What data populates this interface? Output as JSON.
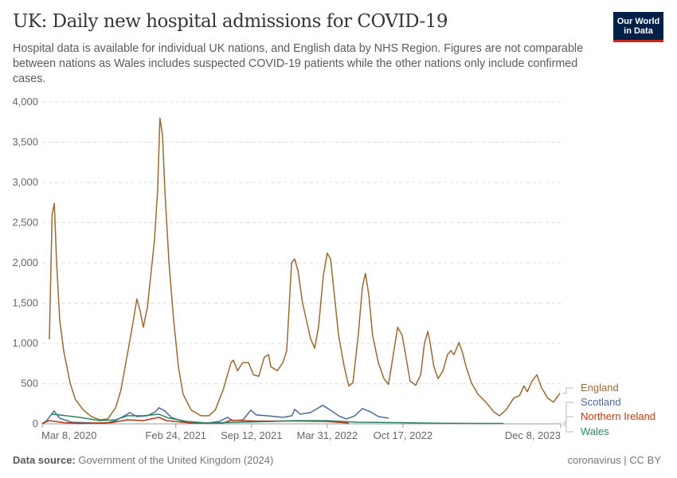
{
  "header": {
    "title": "UK: Daily new hospital admissions for COVID-19",
    "subtitle": "Hospital data is available for individual UK nations, and English data by NHS Region. Figures are not comparable between nations as Wales includes suspected COVID-19 patients while the other nations only include confirmed cases.",
    "logo": "Our World in Data"
  },
  "footer": {
    "source_label": "Data source:",
    "source": "Government of the United Kingdom (2024)",
    "license": "coronavirus | CC BY"
  },
  "chart_data": {
    "type": "line",
    "title": "UK: Daily new hospital admissions for COVID-19",
    "ylim": [
      0,
      4000
    ],
    "y_ticks": [
      0,
      500,
      1000,
      1500,
      2000,
      2500,
      3000,
      3500,
      4000
    ],
    "y_tick_labels": [
      "0",
      "500",
      "1,000",
      "1,500",
      "2,000",
      "2,500",
      "3,000",
      "3,500",
      "4,000"
    ],
    "x_ticks": [
      "2020-03-08",
      "2021-02-24",
      "2021-09-12",
      "2022-03-31",
      "2022-10-17",
      "2023-12-08"
    ],
    "x_tick_labels": [
      "Mar 8, 2020",
      "Feb 24, 2021",
      "Sep 12, 2021",
      "Mar 31, 2022",
      "Oct 17, 2022",
      "Dec 8, 2023"
    ],
    "xlim": [
      "2020-03-08",
      "2023-12-08"
    ],
    "grid": "horizontal dashed",
    "legend": "right, line-end labels",
    "series": [
      {
        "name": "England",
        "color": "#9a6a33",
        "points": [
          [
            "2020-03-27",
            1050
          ],
          [
            "2020-04-03",
            2600
          ],
          [
            "2020-04-09",
            2740
          ],
          [
            "2020-04-15",
            2000
          ],
          [
            "2020-04-23",
            1300
          ],
          [
            "2020-05-04",
            900
          ],
          [
            "2020-05-21",
            500
          ],
          [
            "2020-06-04",
            300
          ],
          [
            "2020-06-25",
            170
          ],
          [
            "2020-07-16",
            90
          ],
          [
            "2020-08-07",
            50
          ],
          [
            "2020-08-28",
            60
          ],
          [
            "2020-09-18",
            200
          ],
          [
            "2020-10-02",
            420
          ],
          [
            "2020-10-19",
            860
          ],
          [
            "2020-11-03",
            1260
          ],
          [
            "2020-11-13",
            1550
          ],
          [
            "2020-11-22",
            1400
          ],
          [
            "2020-11-30",
            1200
          ],
          [
            "2020-12-11",
            1450
          ],
          [
            "2020-12-21",
            1900
          ],
          [
            "2020-12-30",
            2300
          ],
          [
            "2021-01-07",
            2900
          ],
          [
            "2021-01-13",
            3800
          ],
          [
            "2021-01-20",
            3580
          ],
          [
            "2021-01-26",
            2900
          ],
          [
            "2021-02-06",
            2000
          ],
          [
            "2021-02-18",
            1300
          ],
          [
            "2021-03-03",
            700
          ],
          [
            "2021-03-15",
            370
          ],
          [
            "2021-04-06",
            170
          ],
          [
            "2021-05-01",
            100
          ],
          [
            "2021-05-22",
            100
          ],
          [
            "2021-06-08",
            170
          ],
          [
            "2021-06-29",
            420
          ],
          [
            "2021-07-20",
            760
          ],
          [
            "2021-07-26",
            790
          ],
          [
            "2021-08-06",
            660
          ],
          [
            "2021-08-20",
            760
          ],
          [
            "2021-09-04",
            760
          ],
          [
            "2021-09-17",
            610
          ],
          [
            "2021-10-01",
            590
          ],
          [
            "2021-10-16",
            830
          ],
          [
            "2021-10-27",
            860
          ],
          [
            "2021-11-02",
            710
          ],
          [
            "2021-11-19",
            660
          ],
          [
            "2021-12-04",
            760
          ],
          [
            "2021-12-14",
            910
          ],
          [
            "2021-12-27",
            2000
          ],
          [
            "2022-01-04",
            2050
          ],
          [
            "2022-01-13",
            1900
          ],
          [
            "2022-01-25",
            1500
          ],
          [
            "2022-02-15",
            1060
          ],
          [
            "2022-02-26",
            940
          ],
          [
            "2022-03-08",
            1200
          ],
          [
            "2022-03-21",
            1850
          ],
          [
            "2022-03-31",
            2120
          ],
          [
            "2022-04-09",
            2050
          ],
          [
            "2022-04-19",
            1600
          ],
          [
            "2022-04-30",
            1100
          ],
          [
            "2022-05-15",
            710
          ],
          [
            "2022-05-27",
            470
          ],
          [
            "2022-06-07",
            510
          ],
          [
            "2022-06-21",
            1100
          ],
          [
            "2022-07-02",
            1700
          ],
          [
            "2022-07-10",
            1870
          ],
          [
            "2022-07-19",
            1600
          ],
          [
            "2022-07-29",
            1100
          ],
          [
            "2022-08-13",
            760
          ],
          [
            "2022-08-28",
            560
          ],
          [
            "2022-09-09",
            490
          ],
          [
            "2022-09-20",
            810
          ],
          [
            "2022-10-03",
            1200
          ],
          [
            "2022-10-15",
            1100
          ],
          [
            "2022-10-26",
            810
          ],
          [
            "2022-11-05",
            530
          ],
          [
            "2022-11-20",
            480
          ],
          [
            "2022-12-03",
            610
          ],
          [
            "2022-12-13",
            1000
          ],
          [
            "2022-12-22",
            1150
          ],
          [
            "2022-12-28",
            1000
          ],
          [
            "2023-01-07",
            710
          ],
          [
            "2023-01-18",
            560
          ],
          [
            "2023-01-31",
            660
          ],
          [
            "2023-02-12",
            860
          ],
          [
            "2023-02-21",
            910
          ],
          [
            "2023-03-01",
            860
          ],
          [
            "2023-03-14",
            1010
          ],
          [
            "2023-03-22",
            910
          ],
          [
            "2023-04-02",
            710
          ],
          [
            "2023-04-16",
            510
          ],
          [
            "2023-05-03",
            370
          ],
          [
            "2023-05-24",
            270
          ],
          [
            "2023-06-14",
            150
          ],
          [
            "2023-06-29",
            100
          ],
          [
            "2023-07-16",
            170
          ],
          [
            "2023-08-06",
            320
          ],
          [
            "2023-08-21",
            350
          ],
          [
            "2023-09-02",
            470
          ],
          [
            "2023-09-11",
            400
          ],
          [
            "2023-09-23",
            530
          ],
          [
            "2023-10-06",
            610
          ],
          [
            "2023-10-18",
            450
          ],
          [
            "2023-11-04",
            320
          ],
          [
            "2023-11-19",
            270
          ],
          [
            "2023-12-06",
            380
          ]
        ]
      },
      {
        "name": "Scotland",
        "color": "#4c6a9c",
        "points": [
          [
            "2020-03-08",
            0
          ],
          [
            "2020-03-20",
            40
          ],
          [
            "2020-04-08",
            160
          ],
          [
            "2020-04-23",
            70
          ],
          [
            "2020-05-25",
            20
          ],
          [
            "2020-08-21",
            5
          ],
          [
            "2020-09-18",
            40
          ],
          [
            "2020-10-19",
            120
          ],
          [
            "2020-10-25",
            140
          ],
          [
            "2020-11-13",
            90
          ],
          [
            "2020-12-11",
            100
          ],
          [
            "2021-01-01",
            150
          ],
          [
            "2021-01-10",
            200
          ],
          [
            "2021-01-26",
            160
          ],
          [
            "2021-02-12",
            80
          ],
          [
            "2021-03-15",
            30
          ],
          [
            "2021-05-18",
            10
          ],
          [
            "2021-06-19",
            30
          ],
          [
            "2021-07-10",
            80
          ],
          [
            "2021-07-25",
            40
          ],
          [
            "2021-08-21",
            50
          ],
          [
            "2021-09-10",
            170
          ],
          [
            "2021-09-25",
            110
          ],
          [
            "2021-10-23",
            100
          ],
          [
            "2021-12-04",
            80
          ],
          [
            "2021-12-28",
            100
          ],
          [
            "2022-01-04",
            180
          ],
          [
            "2022-01-19",
            120
          ],
          [
            "2022-02-15",
            140
          ],
          [
            "2022-03-19",
            230
          ],
          [
            "2022-04-05",
            180
          ],
          [
            "2022-04-30",
            100
          ],
          [
            "2022-05-21",
            60
          ],
          [
            "2022-06-12",
            100
          ],
          [
            "2022-07-02",
            190
          ],
          [
            "2022-07-23",
            150
          ],
          [
            "2022-08-13",
            90
          ],
          [
            "2022-09-09",
            70
          ]
        ]
      },
      {
        "name": "Northern Ireland",
        "color": "#b13a12",
        "points": [
          [
            "2020-03-08",
            5
          ],
          [
            "2020-03-27",
            40
          ],
          [
            "2020-05-04",
            15
          ],
          [
            "2020-06-15",
            5
          ],
          [
            "2020-09-07",
            15
          ],
          [
            "2020-10-19",
            50
          ],
          [
            "2020-11-30",
            40
          ],
          [
            "2021-01-10",
            80
          ],
          [
            "2021-01-31",
            40
          ],
          [
            "2021-04-04",
            10
          ],
          [
            "2021-06-29",
            10
          ],
          [
            "2021-07-20",
            45
          ],
          [
            "2021-09-21",
            35
          ],
          [
            "2022-01-04",
            35
          ],
          [
            "2022-03-29",
            30
          ],
          [
            "2022-05-27",
            10
          ]
        ]
      },
      {
        "name": "Wales",
        "color": "#2c8465",
        "points": [
          [
            "2020-03-31",
            120
          ],
          [
            "2020-04-23",
            110
          ],
          [
            "2020-06-15",
            80
          ],
          [
            "2020-08-07",
            40
          ],
          [
            "2020-09-18",
            50
          ],
          [
            "2020-10-19",
            100
          ],
          [
            "2020-11-30",
            100
          ],
          [
            "2021-01-10",
            120
          ],
          [
            "2021-02-06",
            70
          ],
          [
            "2021-03-26",
            30
          ],
          [
            "2021-05-18",
            10
          ],
          [
            "2021-08-13",
            20
          ],
          [
            "2021-11-07",
            30
          ],
          [
            "2022-01-04",
            40
          ],
          [
            "2022-03-29",
            40
          ],
          [
            "2022-06-21",
            20
          ],
          [
            "2022-10-07",
            15
          ],
          [
            "2023-01-18",
            8
          ],
          [
            "2023-05-03",
            5
          ],
          [
            "2023-07-10",
            5
          ]
        ]
      }
    ]
  }
}
